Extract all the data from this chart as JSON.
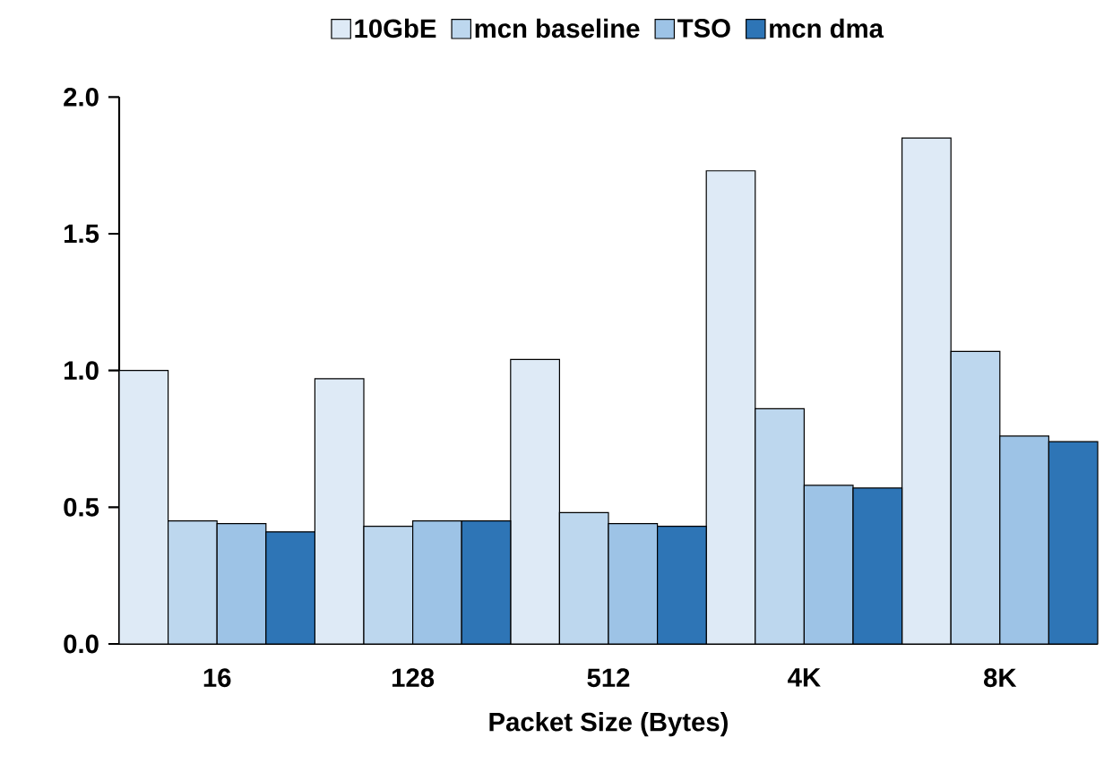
{
  "chart_data": {
    "type": "bar",
    "xlabel": "Packet Size (Bytes)",
    "categories": [
      "16",
      "128",
      "512",
      "4K",
      "8K"
    ],
    "series": [
      {
        "name": "10GbE",
        "color": "#deeaf6",
        "values": [
          1.0,
          0.97,
          1.04,
          1.73,
          1.85
        ]
      },
      {
        "name": "mcn baseline",
        "color": "#bdd7ee",
        "values": [
          0.45,
          0.43,
          0.48,
          0.86,
          1.07
        ]
      },
      {
        "name": "TSO",
        "color": "#9dc3e6",
        "values": [
          0.44,
          0.45,
          0.44,
          0.58,
          0.76
        ]
      },
      {
        "name": "mcn dma",
        "color": "#2e75b6",
        "values": [
          0.41,
          0.45,
          0.43,
          0.57,
          0.74
        ]
      }
    ],
    "ylim": [
      0,
      2.0
    ],
    "yticks": [
      {
        "value": 0,
        "label": "0.0"
      },
      {
        "value": 0.5,
        "label": "0.5"
      },
      {
        "value": 1.0,
        "label": "1.0"
      },
      {
        "value": 1.5,
        "label": "1.5"
      },
      {
        "value": 2.0,
        "label": "2.0"
      }
    ],
    "legend": "top"
  }
}
